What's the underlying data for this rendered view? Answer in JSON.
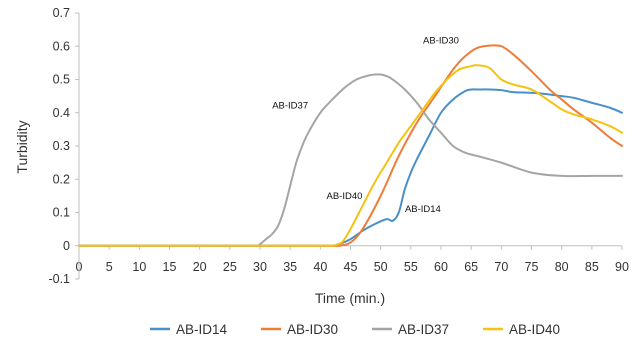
{
  "chart_data": {
    "type": "line",
    "title": "",
    "xlabel": "Time (min.)",
    "ylabel": "Turbidity",
    "xlim": [
      0,
      90
    ],
    "ylim": [
      -0.1,
      0.7
    ],
    "x_ticks": [
      0,
      5,
      10,
      15,
      20,
      25,
      30,
      35,
      40,
      45,
      50,
      55,
      60,
      65,
      70,
      75,
      80,
      85,
      90
    ],
    "y_ticks": [
      -0.1,
      0,
      0.1,
      0.2,
      0.3,
      0.4,
      0.5,
      0.6,
      0.7
    ],
    "grid": false,
    "legend_position": "bottom",
    "series": [
      {
        "name": "AB-ID14",
        "color": "#4a90c8",
        "x": [
          0,
          20,
          40,
          43,
          45,
          47,
          49,
          51,
          52,
          53,
          54,
          55,
          56,
          58,
          60,
          62,
          64,
          65,
          66,
          68,
          70,
          72,
          75,
          78,
          80,
          82,
          85,
          88,
          90
        ],
        "y": [
          0,
          0,
          0,
          0.005,
          0.02,
          0.045,
          0.065,
          0.08,
          0.075,
          0.1,
          0.17,
          0.22,
          0.26,
          0.33,
          0.4,
          0.44,
          0.465,
          0.47,
          0.47,
          0.47,
          0.468,
          0.462,
          0.46,
          0.455,
          0.45,
          0.445,
          0.43,
          0.415,
          0.4
        ]
      },
      {
        "name": "AB-ID30",
        "color": "#ee7d3a",
        "x": [
          0,
          20,
          40,
          43,
          45,
          47,
          50,
          53,
          56,
          59,
          62,
          64,
          66,
          68,
          70,
          72,
          75,
          78,
          80,
          82,
          85,
          88,
          90
        ],
        "y": [
          0,
          0,
          0,
          0,
          0.01,
          0.05,
          0.15,
          0.27,
          0.37,
          0.45,
          0.53,
          0.57,
          0.595,
          0.602,
          0.6,
          0.575,
          0.525,
          0.47,
          0.44,
          0.41,
          0.37,
          0.325,
          0.3
        ]
      },
      {
        "name": "AB-ID37",
        "color": "#a5a5a5",
        "x": [
          0,
          20,
          29,
          30,
          31,
          32,
          33,
          34,
          35,
          36,
          37,
          38,
          40,
          42,
          44,
          46,
          48,
          49,
          50,
          51,
          52,
          54,
          56,
          58,
          60,
          62,
          64,
          66,
          70,
          75,
          80,
          85,
          90
        ],
        "y": [
          0,
          0,
          0,
          0.005,
          0.02,
          0.035,
          0.06,
          0.11,
          0.18,
          0.25,
          0.3,
          0.34,
          0.4,
          0.44,
          0.475,
          0.5,
          0.512,
          0.515,
          0.515,
          0.51,
          0.5,
          0.47,
          0.43,
          0.38,
          0.34,
          0.3,
          0.28,
          0.27,
          0.25,
          0.22,
          0.21,
          0.21,
          0.21
        ]
      },
      {
        "name": "AB-ID40",
        "color": "#f5c210",
        "x": [
          0,
          20,
          40,
          43,
          44,
          45,
          47,
          49,
          51,
          53,
          55,
          57,
          59,
          61,
          63,
          65,
          66,
          68,
          70,
          72,
          75,
          78,
          80,
          82,
          85,
          88,
          90
        ],
        "y": [
          0,
          0,
          0,
          0.005,
          0.02,
          0.05,
          0.12,
          0.19,
          0.25,
          0.31,
          0.36,
          0.41,
          0.46,
          0.5,
          0.53,
          0.54,
          0.543,
          0.535,
          0.5,
          0.485,
          0.47,
          0.435,
          0.41,
          0.395,
          0.38,
          0.36,
          0.34
        ]
      }
    ],
    "annotations": [
      {
        "text": "AB-ID30",
        "x": 60,
        "y": 0.608
      },
      {
        "text": "AB-ID37",
        "x": 35,
        "y": 0.413
      },
      {
        "text": "AB-ID40",
        "x": 44,
        "y": 0.14
      },
      {
        "text": "AB-ID14",
        "x": 57,
        "y": 0.102
      }
    ]
  }
}
